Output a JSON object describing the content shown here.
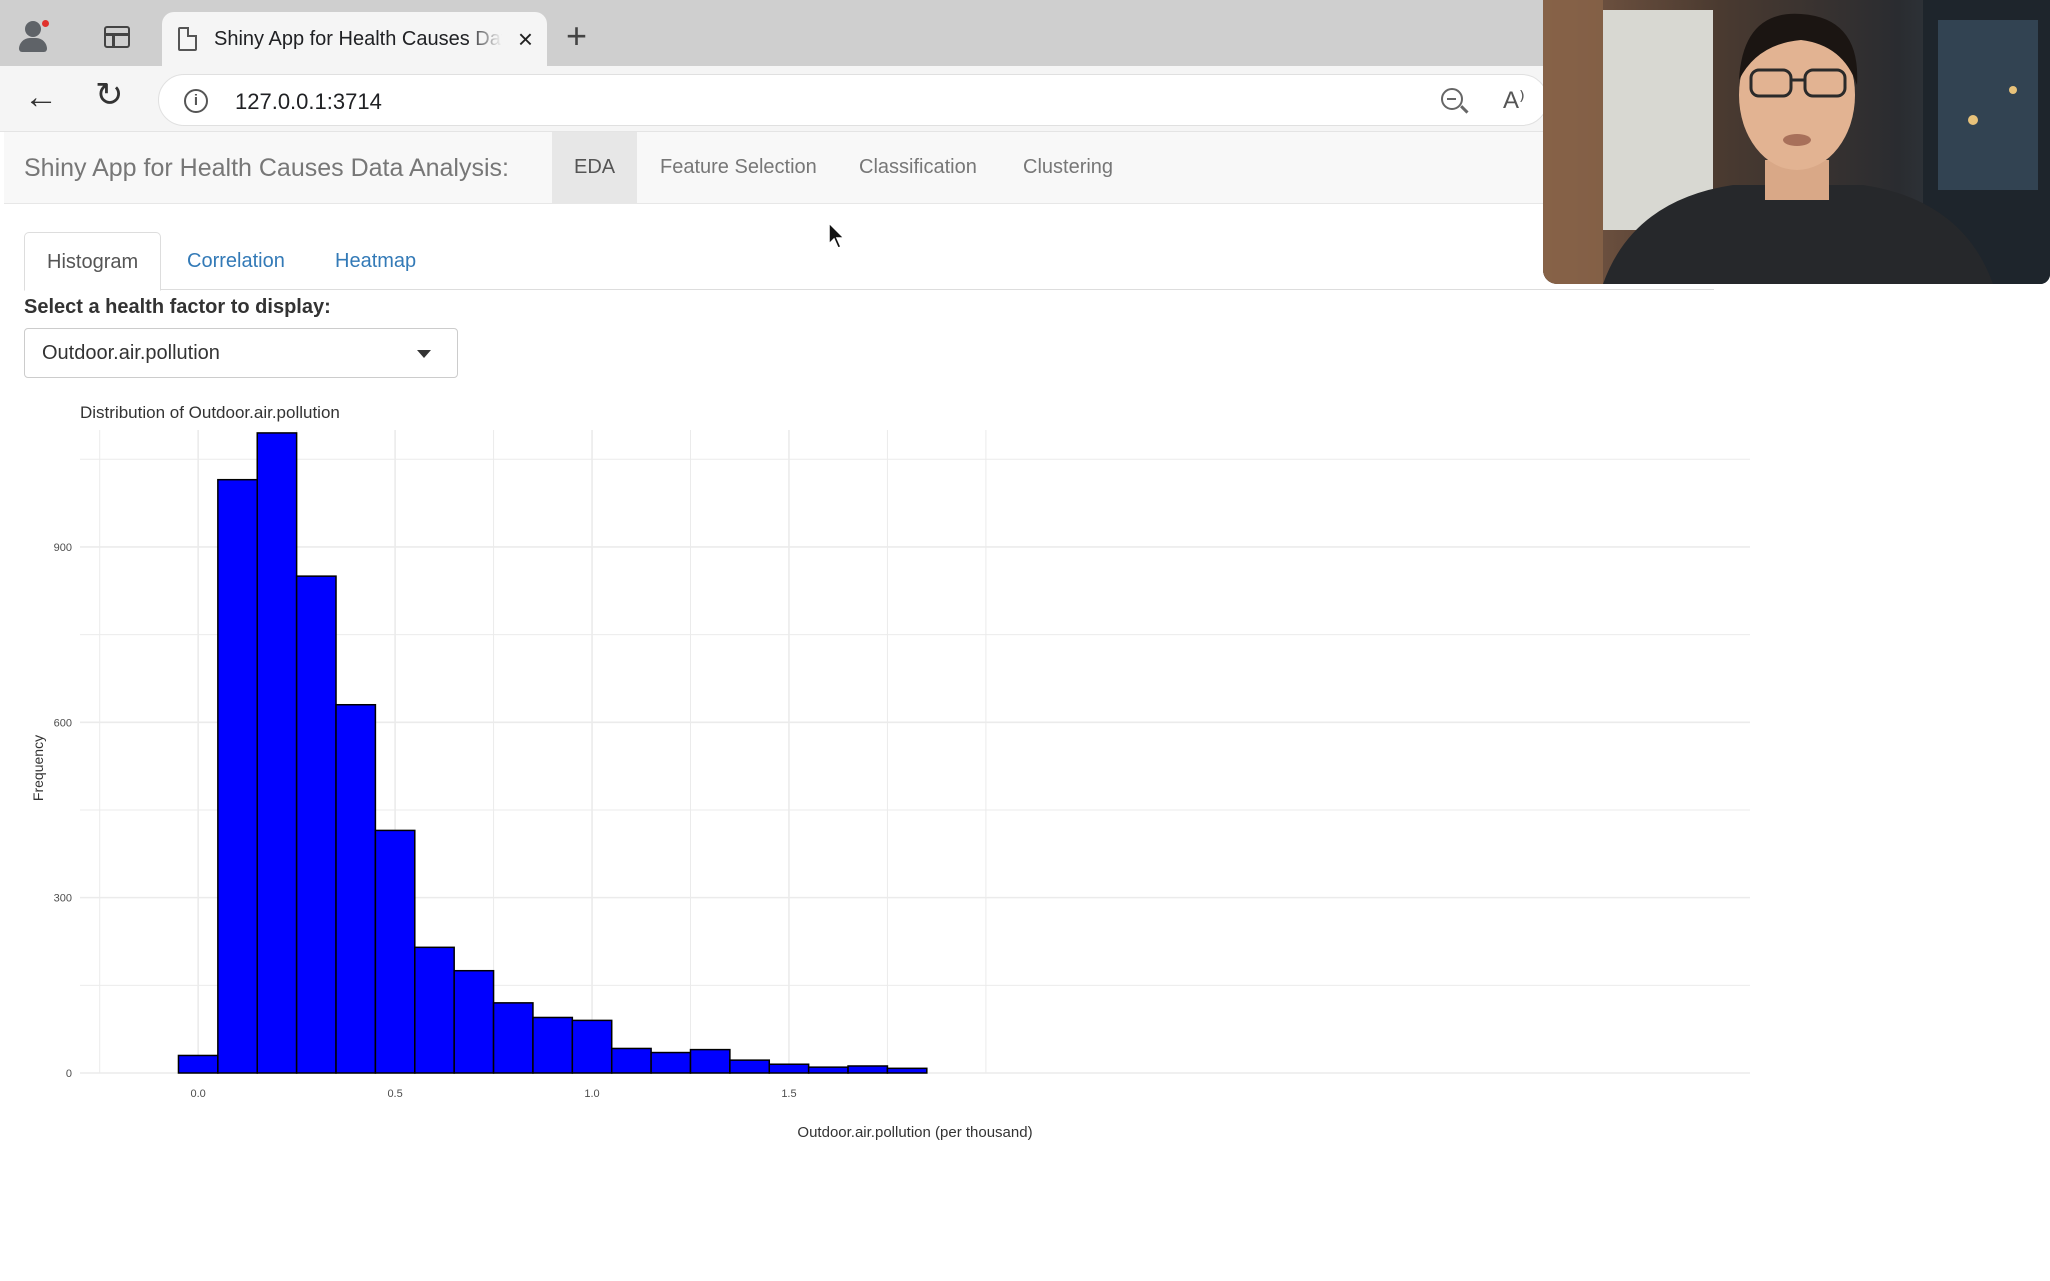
{
  "browser": {
    "tab_title": "Shiny App for Health Causes Data Analysis",
    "tab_close": "×",
    "new_tab": "+",
    "url": "127.0.0.1:3714",
    "back_icon": "arrow-left-icon",
    "reload_icon": "reload-icon",
    "info_icon": "info-icon",
    "zoom_icon": "zoom-out-icon",
    "read_aloud_icon": "read-aloud-icon",
    "read_aloud_glyph": "A⁾"
  },
  "app": {
    "brand": "Shiny App for Health Causes Data Analysis:",
    "nav": [
      {
        "label": "EDA",
        "active": true
      },
      {
        "label": "Feature Selection",
        "active": false
      },
      {
        "label": "Classification",
        "active": false
      },
      {
        "label": "Clustering",
        "active": false
      }
    ],
    "subtabs": [
      {
        "label": "Histogram",
        "active": true
      },
      {
        "label": "Correlation",
        "active": false
      },
      {
        "label": "Heatmap",
        "active": false
      }
    ],
    "select": {
      "label": "Select a health factor to display:",
      "value": "Outdoor.air.pollution"
    }
  },
  "colors": {
    "bar_fill": "#0000ff",
    "bar_stroke": "#000000",
    "grid": "#ebebeb",
    "link": "#337ab7"
  },
  "chart_data": {
    "type": "bar",
    "title": "Distribution of Outdoor.air.pollution",
    "xlabel": "Outdoor.air.pollution (per thousand)",
    "ylabel": "Frequency",
    "bin_width": 0.1,
    "bin_centers": [
      0.0,
      0.1,
      0.2,
      0.3,
      0.4,
      0.5,
      0.6,
      0.7,
      0.8,
      0.9,
      1.0,
      1.1,
      1.2,
      1.3,
      1.4,
      1.5,
      1.6,
      1.7,
      1.8
    ],
    "values": [
      30,
      1015,
      1095,
      850,
      630,
      415,
      215,
      175,
      120,
      95,
      90,
      42,
      35,
      40,
      22,
      15,
      10,
      12,
      8
    ],
    "xlim": [
      -0.3,
      3.94
    ],
    "ylim": [
      0,
      1100
    ],
    "x_ticks": [
      0.0,
      0.5,
      1.0,
      1.5
    ],
    "x_tick_labels": [
      "0.0",
      "0.5",
      "1.0",
      "1.5"
    ],
    "y_ticks": [
      0,
      300,
      600,
      900
    ],
    "y_tick_labels": [
      "0",
      "300",
      "600",
      "900"
    ],
    "grid": true,
    "legend": "none"
  }
}
